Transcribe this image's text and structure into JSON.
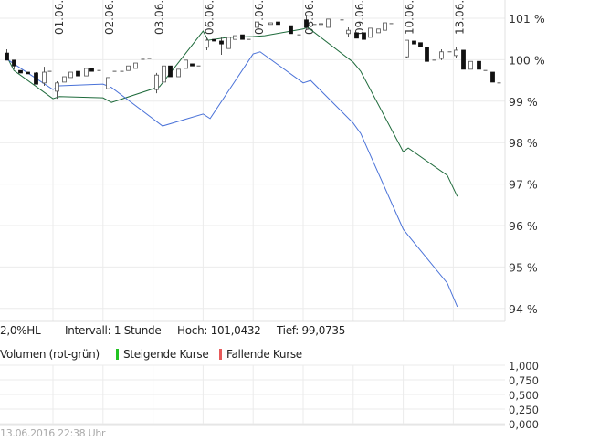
{
  "chart_data": {
    "type": "candlestick+line",
    "x_tick_labels": [
      "01.06.",
      "02.06.",
      "03.06.",
      "06.06.",
      "07.06.",
      "08.06.",
      "09.06.",
      "10.06.",
      "13.06."
    ],
    "y_tick_labels": [
      "101 %",
      "100 %",
      "99 %",
      "98 %",
      "97 %",
      "96 %",
      "95 %",
      "94 %"
    ],
    "y_ticks": [
      101,
      100,
      99,
      98,
      97,
      96,
      95,
      94
    ],
    "ylim": [
      93.7,
      101.45
    ],
    "grid": true,
    "candles_note_columns": [
      "x",
      "open",
      "high",
      "low",
      "close"
    ],
    "candles": [
      [
        0.07,
        100.16,
        100.25,
        99.99,
        99.99
      ],
      [
        0.21,
        99.99,
        99.99,
        99.77,
        99.85
      ],
      [
        0.35,
        99.74,
        99.74,
        99.68,
        99.68
      ],
      [
        0.49,
        99.7,
        99.7,
        99.66,
        99.66
      ],
      [
        0.65,
        99.68,
        99.7,
        99.41,
        99.41
      ],
      [
        0.81,
        99.44,
        99.83,
        99.37,
        99.7
      ],
      [
        0.92,
        99.72,
        99.72,
        99.72,
        99.72
      ],
      [
        1.07,
        99.24,
        99.48,
        99.06,
        99.44
      ],
      [
        1.21,
        99.46,
        99.59,
        99.46,
        99.59
      ],
      [
        1.35,
        99.57,
        99.7,
        99.57,
        99.7
      ],
      [
        1.49,
        99.72,
        99.72,
        99.61,
        99.61
      ],
      [
        1.65,
        99.61,
        99.79,
        99.61,
        99.79
      ],
      [
        1.76,
        99.79,
        99.79,
        99.72,
        99.72
      ],
      [
        1.92,
        99.74,
        99.74,
        99.74,
        99.74
      ],
      [
        2.09,
        99.3,
        99.57,
        99.3,
        99.57
      ],
      [
        2.22,
        99.72,
        99.72,
        99.72,
        99.72
      ],
      [
        2.36,
        99.72,
        99.72,
        99.72,
        99.72
      ],
      [
        2.5,
        99.74,
        99.85,
        99.74,
        99.85
      ],
      [
        2.64,
        99.79,
        99.92,
        99.79,
        99.92
      ],
      [
        2.79,
        100.01,
        100.01,
        100.01,
        100.01
      ],
      [
        2.92,
        100.03,
        100.03,
        100.03,
        100.03
      ],
      [
        3.06,
        99.28,
        99.68,
        99.19,
        99.63
      ],
      [
        3.2,
        99.46,
        99.85,
        99.46,
        99.85
      ],
      [
        3.34,
        99.85,
        99.85,
        99.59,
        99.59
      ],
      [
        3.5,
        99.59,
        99.77,
        99.59,
        99.77
      ],
      [
        3.64,
        99.79,
        99.99,
        99.79,
        99.99
      ],
      [
        3.77,
        99.9,
        99.9,
        99.85,
        99.85
      ],
      [
        3.91,
        99.85,
        99.85,
        99.85,
        99.85
      ],
      [
        4.06,
        100.3,
        100.56,
        100.23,
        100.47
      ],
      [
        4.22,
        100.49,
        100.49,
        100.45,
        100.45
      ],
      [
        4.35,
        100.45,
        100.56,
        100.12,
        100.38
      ],
      [
        4.5,
        100.27,
        100.54,
        100.27,
        100.54
      ],
      [
        4.64,
        100.49,
        100.58,
        100.49,
        100.58
      ],
      [
        4.77,
        100.6,
        100.6,
        100.49,
        100.49
      ],
      [
        4.91,
        100.49,
        100.49,
        100.49,
        100.49
      ],
      [
        5.07,
        100.78,
        100.91,
        100.78,
        100.91
      ],
      [
        5.35,
        100.85,
        100.89,
        100.85,
        100.89
      ],
      [
        5.49,
        100.91,
        100.91,
        100.85,
        100.85
      ],
      [
        5.75,
        100.82,
        100.82,
        100.63,
        100.63
      ],
      [
        5.91,
        100.6,
        100.6,
        100.6,
        100.6
      ],
      [
        6.05,
        100.96,
        101.07,
        100.74,
        100.78
      ],
      [
        6.21,
        100.85,
        100.85,
        100.85,
        100.85
      ],
      [
        6.35,
        100.85,
        100.87,
        100.85,
        100.87
      ],
      [
        6.49,
        100.78,
        100.98,
        100.78,
        100.98
      ],
      [
        6.76,
        100.96,
        100.96,
        100.96,
        100.96
      ],
      [
        6.9,
        100.63,
        100.78,
        100.56,
        100.71
      ],
      [
        7.05,
        100.65,
        100.65,
        100.52,
        100.52
      ],
      [
        7.2,
        100.65,
        100.65,
        100.49,
        100.49
      ],
      [
        7.34,
        100.54,
        100.76,
        100.54,
        100.76
      ],
      [
        7.49,
        100.65,
        100.74,
        100.65,
        100.74
      ],
      [
        7.62,
        100.71,
        100.89,
        100.71,
        100.89
      ],
      [
        7.76,
        100.87,
        100.87,
        100.87,
        100.87
      ],
      [
        8.06,
        100.07,
        100.47,
        100.03,
        100.47
      ],
      [
        8.2,
        100.45,
        100.45,
        100.38,
        100.38
      ],
      [
        8.34,
        100.41,
        100.41,
        100.32,
        100.32
      ],
      [
        8.47,
        100.3,
        100.3,
        99.96,
        99.96
      ],
      [
        8.61,
        99.99,
        99.99,
        99.99,
        99.99
      ],
      [
        8.76,
        100.03,
        100.25,
        99.99,
        100.19
      ],
      [
        8.92,
        100.19,
        100.19,
        100.19,
        100.19
      ],
      [
        9.04,
        100.1,
        100.3,
        100.03,
        100.23
      ],
      [
        9.2,
        100.23,
        100.23,
        99.77,
        99.77
      ],
      [
        9.34,
        99.77,
        99.96,
        99.77,
        99.96
      ],
      [
        9.5,
        99.96,
        99.96,
        99.77,
        99.77
      ],
      [
        9.64,
        99.74,
        99.74,
        99.74,
        99.74
      ],
      [
        9.77,
        99.7,
        99.7,
        99.46,
        99.46
      ],
      [
        9.91,
        99.44,
        99.44,
        99.44,
        99.44
      ]
    ],
    "series": [
      {
        "color": "#1f6b3c",
        "points": [
          [
            0.09,
            100.05
          ],
          [
            0.22,
            99.74
          ],
          [
            1.0,
            99.06
          ],
          [
            1.13,
            99.11
          ],
          [
            2.0,
            99.08
          ],
          [
            2.17,
            98.97
          ],
          [
            3.13,
            99.35
          ],
          [
            4.0,
            100.69
          ],
          [
            4.1,
            100.47
          ],
          [
            4.5,
            100.54
          ],
          [
            5.0,
            100.56
          ],
          [
            5.23,
            100.58
          ],
          [
            6.0,
            100.74
          ],
          [
            6.09,
            100.78
          ],
          [
            7.0,
            99.94
          ],
          [
            7.15,
            99.72
          ],
          [
            8.0,
            97.78
          ],
          [
            8.1,
            97.87
          ],
          [
            8.88,
            97.21
          ],
          [
            9.08,
            96.7
          ]
        ]
      },
      {
        "color": "#4a72d8",
        "points": [
          [
            0.09,
            100.01
          ],
          [
            0.22,
            99.9
          ],
          [
            1.0,
            99.28
          ],
          [
            1.13,
            99.37
          ],
          [
            2.0,
            99.41
          ],
          [
            2.17,
            99.33
          ],
          [
            3.19,
            98.4
          ],
          [
            4.0,
            98.69
          ],
          [
            4.14,
            98.58
          ],
          [
            5.0,
            100.14
          ],
          [
            5.14,
            100.19
          ],
          [
            6.0,
            99.44
          ],
          [
            6.15,
            99.5
          ],
          [
            7.0,
            98.47
          ],
          [
            7.15,
            98.22
          ],
          [
            8.0,
            95.91
          ],
          [
            8.1,
            95.76
          ],
          [
            8.88,
            94.61
          ],
          [
            9.08,
            94.04
          ]
        ]
      }
    ],
    "volume": {
      "y_tick_labels": [
        "1,000",
        "0,750",
        "0,500",
        "0,250",
        "0,000"
      ],
      "ylim": [
        0,
        1
      ],
      "values": []
    }
  },
  "info": {
    "type_label": "2,0%HL",
    "interval": "Intervall: 1 Stunde",
    "high": "Hoch: 101,0432",
    "low": "Tief: 99,0735"
  },
  "legend": {
    "volume_label": "Volumen (rot-grün)",
    "rising_label": "Steigende Kurse",
    "falling_label": "Fallende Kurse",
    "rising_color": "#22c322",
    "falling_color": "#e85a5a"
  },
  "timestamp": "13.06.2016 22:38 Uhr"
}
